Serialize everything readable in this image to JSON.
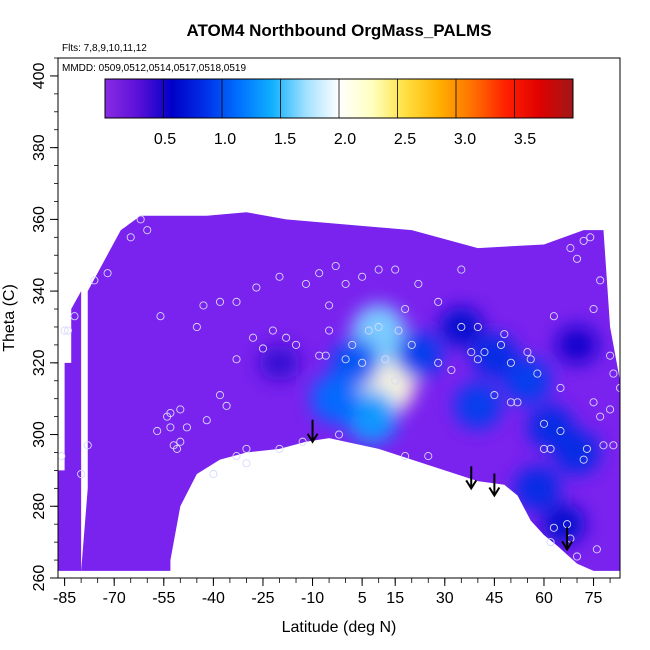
{
  "chart_data": {
    "type": "heatmap",
    "title": "ATOM4 Northbound OrgMass_PALMS",
    "flights_label": "Flts: 7,8,9,10,11,12",
    "dates_label": "MMDD: 0509,0512,0514,0517,0518,0519",
    "xlabel": "Latitude (deg N)",
    "ylabel": "Theta (C)",
    "xlim": [
      -87,
      83
    ],
    "ylim": [
      260,
      405
    ],
    "x_ticks": [
      -85,
      -70,
      -55,
      -40,
      -25,
      -10,
      5,
      15,
      30,
      45,
      60,
      75
    ],
    "y_ticks": [
      260,
      280,
      300,
      320,
      340,
      360,
      380,
      400
    ],
    "colorbar": {
      "range": [
        0,
        3.9
      ],
      "tick_values": [
        0.5,
        1.0,
        1.5,
        2.0,
        2.5,
        3.0,
        3.5
      ],
      "tick_labels": [
        "0.5",
        "1.0",
        "1.5",
        "2.0",
        "2.5",
        "3.0",
        "3.5"
      ],
      "colors": [
        "#8a2be2",
        "#5a10d8",
        "#0000c8",
        "#0030e8",
        "#0070ff",
        "#10b0ff",
        "#a0e0ff",
        "#ffffff",
        "#ffffc0",
        "#ffe040",
        "#ffb000",
        "#ff7000",
        "#ff2000",
        "#e00000",
        "#a01818"
      ]
    },
    "background_color": "#7a22ee",
    "max_color": "#c8f0ff",
    "ground_profile": [
      [
        -53,
        265
      ],
      [
        -50,
        280
      ],
      [
        -45,
        289
      ],
      [
        -38,
        293
      ],
      [
        -30,
        295
      ],
      [
        -20,
        296
      ],
      [
        -12,
        298
      ],
      [
        -5,
        299
      ],
      [
        0,
        298
      ],
      [
        10,
        296
      ],
      [
        20,
        293
      ],
      [
        30,
        290
      ],
      [
        40,
        287
      ],
      [
        48,
        286
      ],
      [
        52,
        283
      ],
      [
        56,
        276
      ],
      [
        60,
        272
      ],
      [
        64,
        269
      ],
      [
        70,
        264
      ],
      [
        75,
        262
      ],
      [
        80,
        261
      ]
    ],
    "high_regions": [
      {
        "lat": 12,
        "theta": 315,
        "value": 2.1
      },
      {
        "lat": 10,
        "theta": 328,
        "value": 1.6
      },
      {
        "lat": 8,
        "theta": 305,
        "value": 1.3
      },
      {
        "lat": 3,
        "theta": 320,
        "value": 1.0
      },
      {
        "lat": -3,
        "theta": 310,
        "value": 1.1
      },
      {
        "lat": 22,
        "theta": 322,
        "value": 0.9
      },
      {
        "lat": 40,
        "theta": 308,
        "value": 0.9
      },
      {
        "lat": 55,
        "theta": 315,
        "value": 0.9
      },
      {
        "lat": 45,
        "theta": 322,
        "value": 0.8
      },
      {
        "lat": 62,
        "theta": 302,
        "value": 0.8
      },
      {
        "lat": 70,
        "theta": 295,
        "value": 0.8
      },
      {
        "lat": 58,
        "theta": 285,
        "value": 0.8
      },
      {
        "lat": 66,
        "theta": 275,
        "value": 0.6
      },
      {
        "lat": 70,
        "theta": 325,
        "value": 0.5
      },
      {
        "lat": 35,
        "theta": 330,
        "value": 0.6
      },
      {
        "lat": -20,
        "theta": 320,
        "value": 0.4
      }
    ],
    "low_value": 0.1,
    "arrows": [
      {
        "lat": -10,
        "theta": 298
      },
      {
        "lat": 38,
        "theta": 285
      },
      {
        "lat": 45,
        "theta": 283
      },
      {
        "lat": 67,
        "theta": 268
      }
    ],
    "samples": [
      [
        -86,
        294
      ],
      [
        -80,
        289
      ],
      [
        -78,
        297
      ],
      [
        -57,
        301
      ],
      [
        -54,
        305
      ],
      [
        -53,
        302
      ],
      [
        -52,
        297
      ],
      [
        -51,
        296
      ],
      [
        -50,
        307
      ],
      [
        -50,
        298
      ],
      [
        -48,
        302
      ],
      [
        -42,
        304
      ],
      [
        -40,
        289
      ],
      [
        -38,
        311
      ],
      [
        -36,
        308
      ],
      [
        -33,
        294
      ],
      [
        -30,
        296
      ],
      [
        -33,
        321
      ],
      [
        -28,
        327
      ],
      [
        -25,
        324
      ],
      [
        -22,
        329
      ],
      [
        -20,
        296
      ],
      [
        -18,
        327
      ],
      [
        -15,
        325
      ],
      [
        -13,
        298
      ],
      [
        -8,
        322
      ],
      [
        -6,
        322
      ],
      [
        -5,
        329
      ],
      [
        -2,
        300
      ],
      [
        0,
        321
      ],
      [
        2,
        325
      ],
      [
        5,
        320
      ],
      [
        7,
        329
      ],
      [
        10,
        330
      ],
      [
        12,
        321
      ],
      [
        15,
        315
      ],
      [
        16,
        329
      ],
      [
        18,
        294
      ],
      [
        20,
        325
      ],
      [
        25,
        294
      ],
      [
        28,
        320
      ],
      [
        32,
        318
      ],
      [
        35,
        330
      ],
      [
        38,
        323
      ],
      [
        40,
        321
      ],
      [
        42,
        323
      ],
      [
        45,
        311
      ],
      [
        47,
        325
      ],
      [
        48,
        328
      ],
      [
        50,
        320
      ],
      [
        50,
        309
      ],
      [
        52,
        309
      ],
      [
        55,
        323
      ],
      [
        56,
        321
      ],
      [
        58,
        317
      ],
      [
        60,
        296
      ],
      [
        60,
        303
      ],
      [
        62,
        296
      ],
      [
        62,
        270
      ],
      [
        63,
        274
      ],
      [
        65,
        313
      ],
      [
        65,
        301
      ],
      [
        67,
        275
      ],
      [
        68,
        271
      ],
      [
        70,
        266
      ],
      [
        72,
        293
      ],
      [
        73,
        296
      ],
      [
        75,
        309
      ],
      [
        76,
        268
      ],
      [
        77,
        305
      ],
      [
        78,
        297
      ],
      [
        80,
        307
      ],
      [
        81,
        297
      ],
      [
        -30,
        292
      ],
      [
        -43,
        336
      ],
      [
        -38,
        337
      ],
      [
        -33,
        337
      ],
      [
        -27,
        341
      ],
      [
        -20,
        344
      ],
      [
        -12,
        342
      ],
      [
        -8,
        345
      ],
      [
        -5,
        336
      ],
      [
        -3,
        347
      ],
      [
        0,
        342
      ],
      [
        5,
        344
      ],
      [
        10,
        346
      ],
      [
        15,
        346
      ],
      [
        18,
        335
      ],
      [
        22,
        342
      ],
      [
        28,
        337
      ],
      [
        35,
        346
      ],
      [
        40,
        330
      ],
      [
        63,
        333
      ],
      [
        68,
        352
      ],
      [
        70,
        349
      ],
      [
        72,
        354
      ],
      [
        74,
        355
      ],
      [
        75,
        335
      ],
      [
        77,
        343
      ],
      [
        80,
        322
      ],
      [
        81,
        317
      ],
      [
        83,
        313
      ],
      [
        -60,
        357
      ],
      [
        -62,
        360
      ],
      [
        -65,
        355
      ],
      [
        -72,
        345
      ],
      [
        -76,
        343
      ],
      [
        -82,
        333
      ],
      [
        -84,
        329
      ],
      [
        -85,
        329
      ],
      [
        -45,
        330
      ],
      [
        -53,
        306
      ],
      [
        -56,
        333
      ]
    ]
  }
}
